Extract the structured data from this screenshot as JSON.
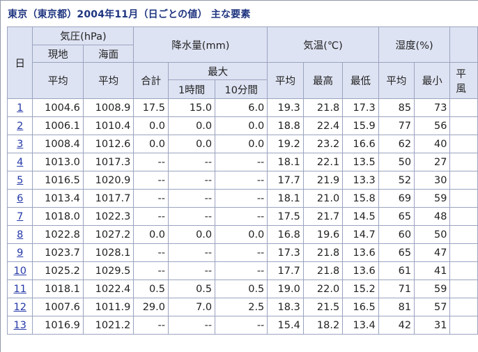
{
  "title": "東京（東京都）2004年11月（日ごとの値） 主な要素",
  "headers": {
    "day": "日",
    "pressure": "気圧(hPa)",
    "pressure_station": "現地",
    "pressure_sea": "海面",
    "average": "平均",
    "precipitation": "降水量(mm)",
    "total": "合計",
    "maximum": "最大",
    "one_hour": "1時間",
    "ten_min": "10分間",
    "temperature": "気温(℃)",
    "highest": "最高",
    "lowest": "最低",
    "humidity": "湿度(%)",
    "minimum": "最小",
    "wind_partial_top": "平",
    "wind_partial_bottom": "風"
  },
  "rows": [
    {
      "day": "1",
      "p_station": "1004.6",
      "p_sea": "1008.9",
      "pr_total": "17.5",
      "pr_1h": "15.0",
      "pr_10m": "6.0",
      "t_avg": "19.3",
      "t_max": "21.8",
      "t_min": "17.3",
      "h_avg": "85",
      "h_min": "73"
    },
    {
      "day": "2",
      "p_station": "1006.1",
      "p_sea": "1010.4",
      "pr_total": "0.0",
      "pr_1h": "0.0",
      "pr_10m": "0.0",
      "t_avg": "18.8",
      "t_max": "22.4",
      "t_min": "15.9",
      "h_avg": "77",
      "h_min": "56"
    },
    {
      "day": "3",
      "p_station": "1008.4",
      "p_sea": "1012.6",
      "pr_total": "0.0",
      "pr_1h": "0.0",
      "pr_10m": "0.0",
      "t_avg": "19.2",
      "t_max": "23.2",
      "t_min": "16.6",
      "h_avg": "62",
      "h_min": "40"
    },
    {
      "day": "4",
      "p_station": "1013.0",
      "p_sea": "1017.3",
      "pr_total": "--",
      "pr_1h": "--",
      "pr_10m": "--",
      "t_avg": "18.1",
      "t_max": "22.1",
      "t_min": "13.5",
      "h_avg": "50",
      "h_min": "27"
    },
    {
      "day": "5",
      "p_station": "1016.5",
      "p_sea": "1020.9",
      "pr_total": "--",
      "pr_1h": "--",
      "pr_10m": "--",
      "t_avg": "17.7",
      "t_max": "21.9",
      "t_min": "13.3",
      "h_avg": "52",
      "h_min": "30"
    },
    {
      "day": "6",
      "p_station": "1013.4",
      "p_sea": "1017.7",
      "pr_total": "--",
      "pr_1h": "--",
      "pr_10m": "--",
      "t_avg": "18.1",
      "t_max": "21.0",
      "t_min": "15.8",
      "h_avg": "69",
      "h_min": "59"
    },
    {
      "day": "7",
      "p_station": "1018.0",
      "p_sea": "1022.3",
      "pr_total": "--",
      "pr_1h": "--",
      "pr_10m": "--",
      "t_avg": "17.5",
      "t_max": "21.7",
      "t_min": "14.5",
      "h_avg": "65",
      "h_min": "48"
    },
    {
      "day": "8",
      "p_station": "1022.8",
      "p_sea": "1027.2",
      "pr_total": "0.0",
      "pr_1h": "0.0",
      "pr_10m": "0.0",
      "t_avg": "16.8",
      "t_max": "19.6",
      "t_min": "14.7",
      "h_avg": "60",
      "h_min": "50"
    },
    {
      "day": "9",
      "p_station": "1023.7",
      "p_sea": "1028.1",
      "pr_total": "--",
      "pr_1h": "--",
      "pr_10m": "--",
      "t_avg": "17.3",
      "t_max": "21.8",
      "t_min": "13.6",
      "h_avg": "65",
      "h_min": "47"
    },
    {
      "day": "10",
      "p_station": "1025.2",
      "p_sea": "1029.5",
      "pr_total": "--",
      "pr_1h": "--",
      "pr_10m": "--",
      "t_avg": "17.7",
      "t_max": "21.8",
      "t_min": "13.6",
      "h_avg": "61",
      "h_min": "41"
    },
    {
      "day": "11",
      "p_station": "1018.1",
      "p_sea": "1022.4",
      "pr_total": "0.5",
      "pr_1h": "0.5",
      "pr_10m": "0.5",
      "t_avg": "19.0",
      "t_max": "22.0",
      "t_min": "15.2",
      "h_avg": "71",
      "h_min": "59"
    },
    {
      "day": "12",
      "p_station": "1007.6",
      "p_sea": "1011.9",
      "pr_total": "29.0",
      "pr_1h": "7.0",
      "pr_10m": "2.5",
      "t_avg": "18.3",
      "t_max": "21.5",
      "t_min": "16.5",
      "h_avg": "81",
      "h_min": "57"
    },
    {
      "day": "13",
      "p_station": "1016.9",
      "p_sea": "1021.2",
      "pr_total": "--",
      "pr_1h": "--",
      "pr_10m": "--",
      "t_avg": "15.4",
      "t_max": "18.2",
      "t_min": "13.4",
      "h_avg": "42",
      "h_min": "31"
    }
  ]
}
